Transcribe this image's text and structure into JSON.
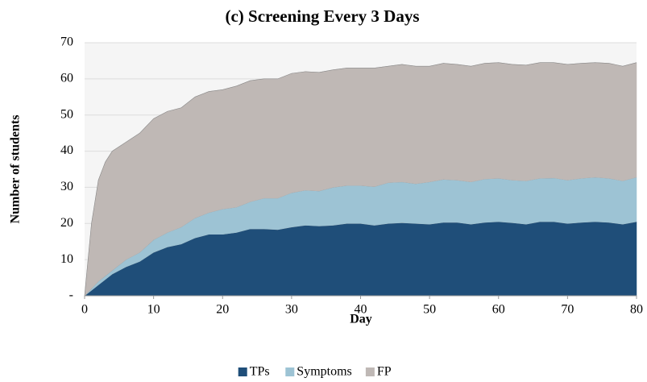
{
  "chart_data": {
    "type": "stacked_area",
    "title": "(c) Screening Every 3 Days",
    "xlabel": "Day",
    "ylabel": "Number of students",
    "x": [
      0,
      1,
      2,
      3,
      4,
      6,
      8,
      10,
      12,
      14,
      16,
      18,
      20,
      22,
      24,
      26,
      28,
      30,
      32,
      34,
      36,
      38,
      40,
      42,
      44,
      46,
      48,
      50,
      52,
      54,
      56,
      58,
      60,
      62,
      64,
      66,
      68,
      70,
      72,
      74,
      76,
      78,
      80
    ],
    "series": [
      {
        "name": "TPs",
        "color": "#1f4e79",
        "values": [
          0,
          1.5,
          3,
          4.5,
          6,
          8,
          9.5,
          12,
          13.5,
          14.3,
          16,
          17,
          17,
          17.5,
          18.5,
          18.5,
          18.3,
          19,
          19.5,
          19.3,
          19.5,
          20,
          20,
          19.5,
          20,
          20.2,
          20,
          19.8,
          20.3,
          20.3,
          19.8,
          20.3,
          20.5,
          20.2,
          19.8,
          20.5,
          20.5,
          20,
          20.3,
          20.5,
          20.3,
          19.8,
          20.5
        ]
      },
      {
        "name": "Symptoms",
        "color": "#9dc3d4",
        "values": [
          0,
          0.5,
          1,
          1,
          1,
          2,
          2.5,
          3.5,
          4,
          4.7,
          5.5,
          6,
          7,
          7,
          7.5,
          8.5,
          8.7,
          9.5,
          9.7,
          9.7,
          10.5,
          10.5,
          10.5,
          10.7,
          11.3,
          11.3,
          11,
          11.7,
          11.9,
          11.7,
          11.7,
          12,
          12,
          11.8,
          12,
          12,
          12.1,
          12,
          12.2,
          12.3,
          12.2,
          12,
          12.3
        ]
      },
      {
        "name": "FP",
        "color": "#bfb8b5",
        "values": [
          0,
          18,
          28,
          31.5,
          33,
          32.5,
          33,
          33.5,
          33.5,
          33,
          33.5,
          33.5,
          33,
          33.5,
          33.5,
          33,
          33,
          33,
          32.8,
          32.8,
          32.5,
          32.5,
          32.5,
          32.8,
          32.2,
          32.5,
          32.5,
          32,
          32.1,
          32,
          32,
          32,
          32,
          32,
          32,
          32,
          31.9,
          32,
          31.8,
          31.7,
          31.8,
          31.7,
          31.7
        ]
      }
    ],
    "xlim": [
      0,
      80
    ],
    "xticks": [
      0,
      10,
      20,
      30,
      40,
      50,
      60,
      70,
      80
    ],
    "ylim": [
      0,
      70
    ],
    "yticks": [
      {
        "value": 0,
        "label": "-"
      },
      10,
      20,
      30,
      40,
      50,
      60,
      70
    ],
    "grid": true,
    "legend": "bottom"
  }
}
